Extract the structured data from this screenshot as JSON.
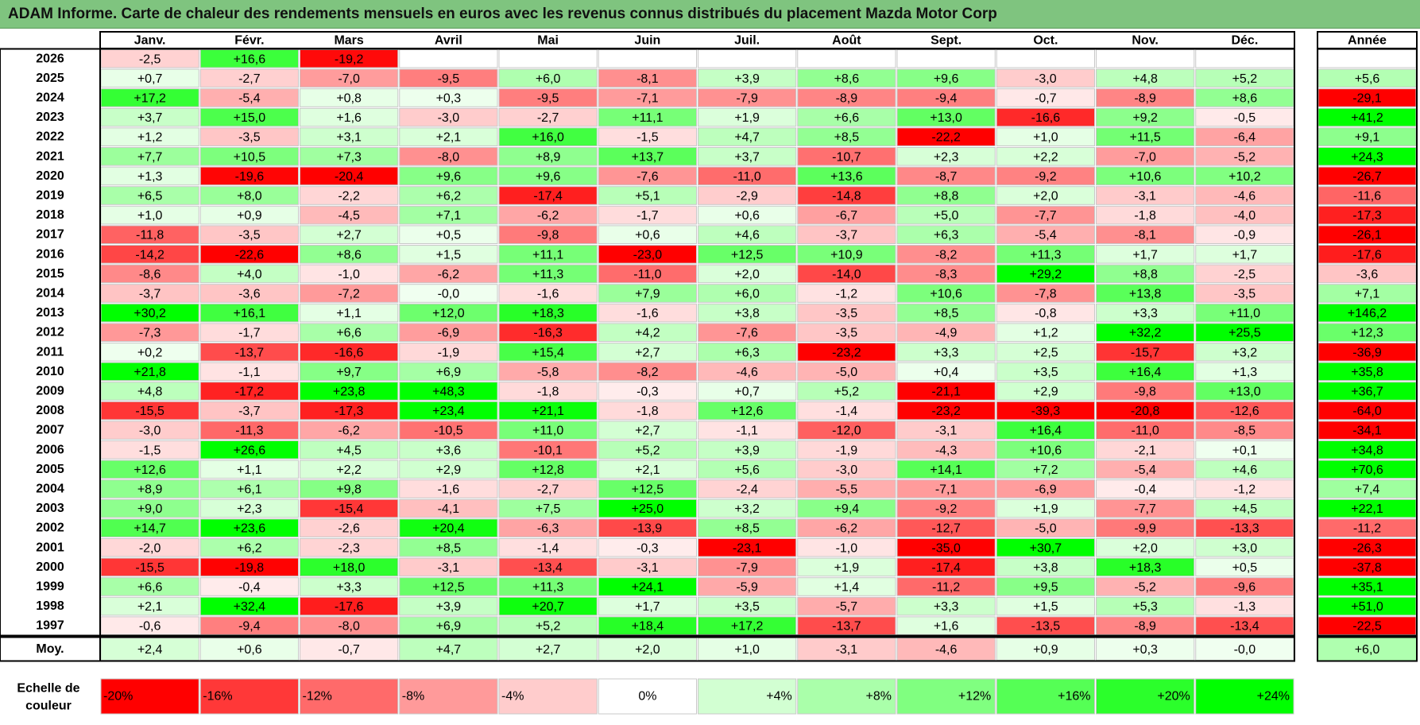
{
  "title": "ADAM Informe. Carte de chaleur des rendements mensuels en euros avec les revenus connus distribués du placement Mazda Motor Corp",
  "chart_data": {
    "type": "heatmap",
    "months": [
      "Janv.",
      "Févr.",
      "Mars",
      "Avril",
      "Mai",
      "Juin",
      "Juil.",
      "Août",
      "Sept.",
      "Oct.",
      "Nov.",
      "Déc."
    ],
    "year_column_label": "Année",
    "rows": [
      {
        "year": "2026",
        "values": [
          "-2,5",
          "+16,6",
          "-19,2",
          "",
          "",
          "",
          "",
          "",
          "",
          "",
          "",
          ""
        ],
        "annual": ""
      },
      {
        "year": "2025",
        "values": [
          "+0,7",
          "-2,7",
          "-7,0",
          "-9,5",
          "+6,0",
          "-8,1",
          "+3,9",
          "+8,6",
          "+9,6",
          "-3,0",
          "+4,8",
          "+5,2"
        ],
        "annual": "+5,6"
      },
      {
        "year": "2024",
        "values": [
          "+17,2",
          "-5,4",
          "+0,8",
          "+0,3",
          "-9,5",
          "-7,1",
          "-7,9",
          "-8,9",
          "-9,4",
          "-0,7",
          "-8,9",
          "+8,6"
        ],
        "annual": "-29,1"
      },
      {
        "year": "2023",
        "values": [
          "+3,7",
          "+15,0",
          "+1,6",
          "-3,0",
          "-2,7",
          "+11,1",
          "+1,9",
          "+6,6",
          "+13,0",
          "-16,6",
          "+9,2",
          "-0,5"
        ],
        "annual": "+41,2"
      },
      {
        "year": "2022",
        "values": [
          "+1,2",
          "-3,5",
          "+3,1",
          "+2,1",
          "+16,0",
          "-1,5",
          "+4,7",
          "+8,5",
          "-22,2",
          "+1,0",
          "+11,5",
          "-6,4"
        ],
        "annual": "+9,1"
      },
      {
        "year": "2021",
        "values": [
          "+7,7",
          "+10,5",
          "+7,3",
          "-8,0",
          "+8,9",
          "+13,7",
          "+3,7",
          "-10,7",
          "+2,3",
          "+2,2",
          "-7,0",
          "-5,2"
        ],
        "annual": "+24,3"
      },
      {
        "year": "2020",
        "values": [
          "+1,3",
          "-19,6",
          "-20,4",
          "+9,6",
          "+9,6",
          "-7,6",
          "-11,0",
          "+13,6",
          "-8,7",
          "-9,2",
          "+10,6",
          "+10,2"
        ],
        "annual": "-26,7"
      },
      {
        "year": "2019",
        "values": [
          "+6,5",
          "+8,0",
          "-2,2",
          "+6,2",
          "-17,4",
          "+5,1",
          "-2,9",
          "-14,8",
          "+8,8",
          "+2,0",
          "-3,1",
          "-4,6"
        ],
        "annual": "-11,6"
      },
      {
        "year": "2018",
        "values": [
          "+1,0",
          "+0,9",
          "-4,5",
          "+7,1",
          "-6,2",
          "-1,7",
          "+0,6",
          "-6,7",
          "+5,0",
          "-7,7",
          "-1,8",
          "-4,0"
        ],
        "annual": "-17,3"
      },
      {
        "year": "2017",
        "values": [
          "-11,8",
          "-3,5",
          "+2,7",
          "+0,5",
          "-9,8",
          "+0,6",
          "+4,6",
          "-3,7",
          "+6,3",
          "-5,4",
          "-8,1",
          "-0,9"
        ],
        "annual": "-26,1"
      },
      {
        "year": "2016",
        "values": [
          "-14,2",
          "-22,6",
          "+8,6",
          "+1,5",
          "+11,1",
          "-23,0",
          "+12,5",
          "+10,9",
          "-8,2",
          "+11,3",
          "+1,7",
          "+1,7"
        ],
        "annual": "-17,6"
      },
      {
        "year": "2015",
        "values": [
          "-8,6",
          "+4,0",
          "-1,0",
          "-6,2",
          "+11,3",
          "-11,0",
          "+2,0",
          "-14,0",
          "-8,3",
          "+29,2",
          "+8,8",
          "-2,5"
        ],
        "annual": "-3,6"
      },
      {
        "year": "2014",
        "values": [
          "-3,7",
          "-3,6",
          "-7,2",
          "-0,0",
          "-1,6",
          "+7,9",
          "+6,0",
          "-1,2",
          "+10,6",
          "-7,8",
          "+13,8",
          "-3,5"
        ],
        "annual": "+7,1"
      },
      {
        "year": "2013",
        "values": [
          "+30,2",
          "+16,1",
          "+1,1",
          "+12,0",
          "+18,3",
          "-1,6",
          "+3,8",
          "-3,5",
          "+8,5",
          "-0,8",
          "+3,3",
          "+11,0"
        ],
        "annual": "+146,2"
      },
      {
        "year": "2012",
        "values": [
          "-7,3",
          "-1,7",
          "+6,6",
          "-6,9",
          "-16,3",
          "+4,2",
          "-7,6",
          "-3,5",
          "-4,9",
          "+1,2",
          "+32,2",
          "+25,5"
        ],
        "annual": "+12,3"
      },
      {
        "year": "2011",
        "values": [
          "+0,2",
          "-13,7",
          "-16,6",
          "-1,9",
          "+15,4",
          "+2,7",
          "+6,3",
          "-23,2",
          "+3,3",
          "+2,5",
          "-15,7",
          "+3,2"
        ],
        "annual": "-36,9"
      },
      {
        "year": "2010",
        "values": [
          "+21,8",
          "-1,1",
          "+9,7",
          "+6,9",
          "-5,8",
          "-8,2",
          "-4,6",
          "-5,0",
          "+0,4",
          "+3,5",
          "+16,4",
          "+1,3"
        ],
        "annual": "+35,8"
      },
      {
        "year": "2009",
        "values": [
          "+4,8",
          "-17,2",
          "+23,8",
          "+48,3",
          "-1,8",
          "-0,3",
          "+0,7",
          "+5,2",
          "-21,1",
          "+2,9",
          "-9,8",
          "+13,0"
        ],
        "annual": "+36,7"
      },
      {
        "year": "2008",
        "values": [
          "-15,5",
          "-3,7",
          "-17,3",
          "+23,4",
          "+21,1",
          "-1,8",
          "+12,6",
          "-1,4",
          "-23,2",
          "-39,3",
          "-20,8",
          "-12,6"
        ],
        "annual": "-64,0"
      },
      {
        "year": "2007",
        "values": [
          "-3,0",
          "-11,3",
          "-6,2",
          "-10,5",
          "+11,0",
          "+2,7",
          "-1,1",
          "-12,0",
          "-3,1",
          "+16,4",
          "-11,0",
          "-8,5"
        ],
        "annual": "-34,1"
      },
      {
        "year": "2006",
        "values": [
          "-1,5",
          "+26,6",
          "+4,5",
          "+3,6",
          "-10,1",
          "+5,2",
          "+3,9",
          "-1,9",
          "-4,3",
          "+10,6",
          "-2,1",
          "+0,1"
        ],
        "annual": "+34,8"
      },
      {
        "year": "2005",
        "values": [
          "+12,6",
          "+1,1",
          "+2,2",
          "+2,9",
          "+12,8",
          "+2,1",
          "+5,6",
          "-3,0",
          "+14,1",
          "+7,2",
          "-5,4",
          "+4,6"
        ],
        "annual": "+70,6"
      },
      {
        "year": "2004",
        "values": [
          "+8,9",
          "+6,1",
          "+9,8",
          "-1,6",
          "-2,7",
          "+12,5",
          "-2,4",
          "-5,5",
          "-7,1",
          "-6,9",
          "-0,4",
          "-1,2"
        ],
        "annual": "+7,4"
      },
      {
        "year": "2003",
        "values": [
          "+9,0",
          "+2,3",
          "-15,4",
          "-4,1",
          "+7,5",
          "+25,0",
          "+3,2",
          "+9,4",
          "-9,2",
          "+1,9",
          "-7,7",
          "+4,5"
        ],
        "annual": "+22,1"
      },
      {
        "year": "2002",
        "values": [
          "+14,7",
          "+23,6",
          "-2,6",
          "+20,4",
          "-6,3",
          "-13,9",
          "+8,5",
          "-6,2",
          "-12,7",
          "-5,0",
          "-9,9",
          "-13,3"
        ],
        "annual": "-11,2"
      },
      {
        "year": "2001",
        "values": [
          "-2,0",
          "+6,2",
          "-2,3",
          "+8,5",
          "-1,4",
          "-0,3",
          "-23,1",
          "-1,0",
          "-35,0",
          "+30,7",
          "+2,0",
          "+3,0"
        ],
        "annual": "-26,3"
      },
      {
        "year": "2000",
        "values": [
          "-15,5",
          "-19,8",
          "+18,0",
          "-3,1",
          "-13,4",
          "-3,1",
          "-7,9",
          "+1,9",
          "-17,4",
          "+3,8",
          "+18,3",
          "+0,5"
        ],
        "annual": "-37,8"
      },
      {
        "year": "1999",
        "values": [
          "+6,6",
          "-0,4",
          "+3,3",
          "+12,5",
          "+11,3",
          "+24,1",
          "-5,9",
          "+1,4",
          "-11,2",
          "+9,5",
          "-5,2",
          "-9,6"
        ],
        "annual": "+35,1"
      },
      {
        "year": "1998",
        "values": [
          "+2,1",
          "+32,4",
          "-17,6",
          "+3,9",
          "+20,7",
          "+1,7",
          "+3,5",
          "-5,7",
          "+3,3",
          "+1,5",
          "+5,3",
          "-1,3"
        ],
        "annual": "+51,0"
      },
      {
        "year": "1997",
        "values": [
          "-0,6",
          "-9,4",
          "-8,0",
          "+6,9",
          "+5,2",
          "+18,4",
          "+17,2",
          "-13,7",
          "+1,6",
          "-13,5",
          "-8,9",
          "-13,4"
        ],
        "annual": "-22,5"
      }
    ],
    "average": {
      "label": "Moy.",
      "values": [
        "+2,4",
        "+0,6",
        "-0,7",
        "+4,7",
        "+2,7",
        "+2,0",
        "+1,0",
        "-3,1",
        "-4,6",
        "+0,9",
        "+0,3",
        "-0,0"
      ],
      "annual": "+6,0"
    },
    "scale": {
      "label_line1": "Echelle de",
      "label_line2": "couleur",
      "stops": [
        "-20%",
        "-16%",
        "-12%",
        "-8%",
        "-4%",
        "0%",
        "+4%",
        "+8%",
        "+12%",
        "+16%",
        "+20%",
        "+24%"
      ],
      "colors": [
        "#ff0000",
        "#ff3838",
        "#ff6a6a",
        "#ff9a9a",
        "#ffcccc",
        "#ffffff",
        "#d2ffd2",
        "#aaffaa",
        "#80ff80",
        "#55ff55",
        "#2bff2b",
        "#00ff00"
      ]
    },
    "colors": {
      "negative_max": "#ff0000",
      "neutral": "#ffffff",
      "positive_max": "#00ff00",
      "title_bar": "#7fc47f"
    }
  }
}
